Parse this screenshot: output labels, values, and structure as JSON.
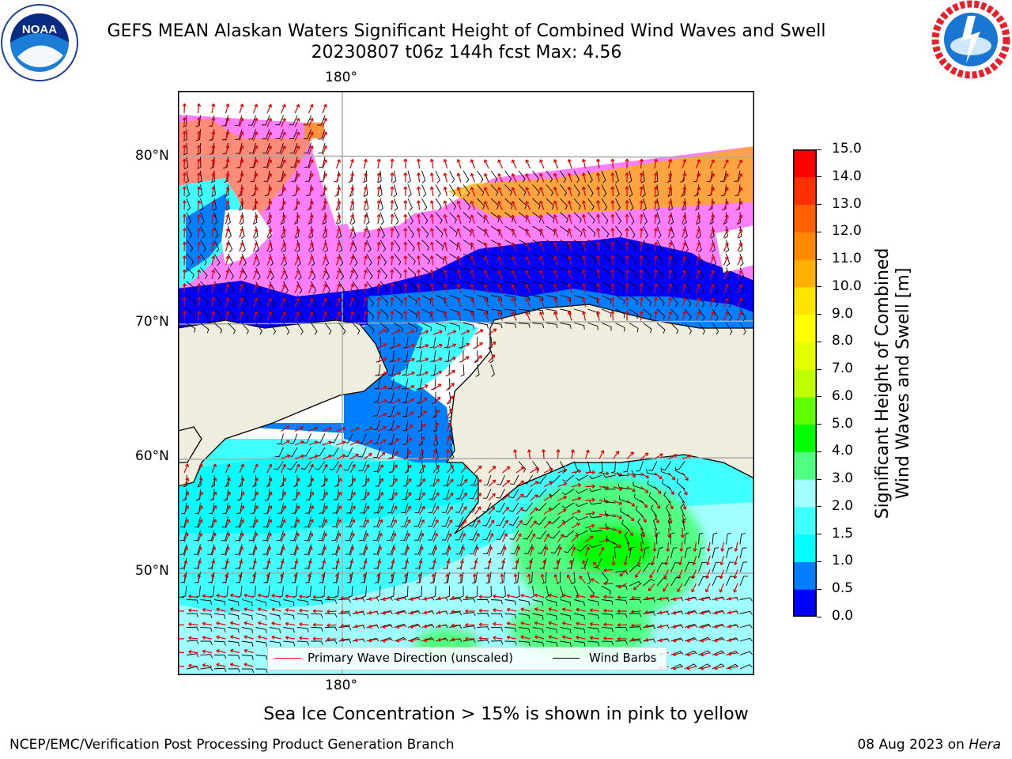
{
  "figure": {
    "title_line1": "GEFS MEAN Alaskan Waters Significant Height of Combined Wind Waves and Swell",
    "title_line2": "20230807 t06z 144h fcst   Max: 4.56",
    "caption": "Sea Ice Concentration > 15% is shown in pink to yellow",
    "footer_left": "NCEP/EMC/Verification Post Processing Product Generation Branch",
    "footer_date": "08 Aug 2023 on ",
    "footer_machine": "Hera",
    "logo_left": "NOAA",
    "logo_left_ring": "NATIONAL OCEANIC AND ATMOSPHERIC ADMINISTRATION · U.S. DEPARTMENT OF COMMERCE",
    "logo_right_ring": "NATIONAL WEATHER SERVICE"
  },
  "map": {
    "lon_label_top": "180°",
    "lon_label_bottom": "180°",
    "lat_labels": [
      "80°N",
      "70°N",
      "60°N",
      "50°N"
    ],
    "land_color": "#efeddd",
    "legend": {
      "wave_label": "Primary Wave Direction (unscaled)",
      "wave_color": "#ff0000",
      "wind_label": "Wind Barbs",
      "wind_color": "#000000"
    }
  },
  "colorbar": {
    "label_line1": "Significant Height of Combined",
    "label_line2": "Wind Waves and Swell [m]",
    "ticks": [
      "15.0",
      "14.0",
      "13.0",
      "12.0",
      "11.0",
      "10.0",
      "9.0",
      "8.0",
      "7.0",
      "6.0",
      "5.0",
      "4.0",
      "3.0",
      "2.0",
      "1.5",
      "1.0",
      "0.5",
      "0.0"
    ],
    "colors_bottom_to_top": [
      "#0000ff",
      "#0080ff",
      "#00ffff",
      "#40ffff",
      "#a0ffff",
      "#50ff80",
      "#00ff00",
      "#60ff00",
      "#c0ff00",
      "#e6ff00",
      "#ffff00",
      "#ffe400",
      "#ffb000",
      "#ff8a00",
      "#ff6000",
      "#ff3000",
      "#ff0000"
    ]
  }
}
